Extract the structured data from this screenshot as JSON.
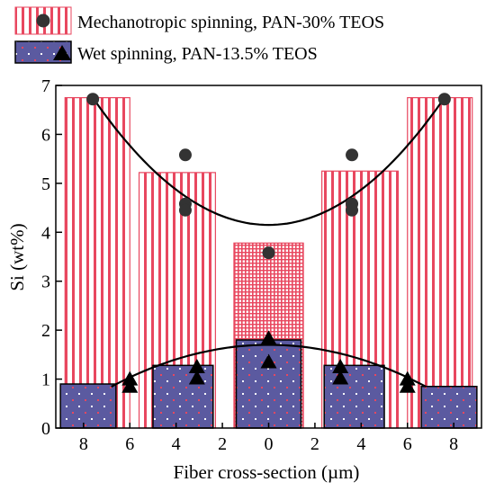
{
  "chart_data": {
    "type": "bar",
    "xlabel": "Fiber cross-section (µm)",
    "ylabel": "Si (wt%)",
    "ylim": [
      0,
      7
    ],
    "yticks": [
      "0",
      "1",
      "2",
      "3",
      "4",
      "5",
      "6",
      "7"
    ],
    "xtick_labels": [
      "8",
      "6",
      "4",
      "2",
      "0",
      "2",
      "4",
      "6",
      "8"
    ],
    "legend": {
      "position": "top",
      "entries": [
        "Mechanotropic spinning, PAN-30% TEOS",
        "Wet spinning, PAN-13.5% TEOS"
      ]
    },
    "series": [
      {
        "name": "Mechanotropic spinning, PAN-30% TEOS",
        "bar_values": [
          6.75,
          5.22,
          3.78,
          5.25,
          6.75
        ],
        "points": [
          {
            "x": -7.6,
            "y": 6.72
          },
          {
            "x": -3.6,
            "y": 5.58
          },
          {
            "x": -3.6,
            "y": 4.58
          },
          {
            "x": -3.6,
            "y": 4.45
          },
          {
            "x": 0.0,
            "y": 3.58
          },
          {
            "x": 3.6,
            "y": 5.58
          },
          {
            "x": 3.6,
            "y": 4.58
          },
          {
            "x": 3.6,
            "y": 4.45
          },
          {
            "x": 7.6,
            "y": 6.72
          }
        ],
        "fit_min": 4.15,
        "fit_edge": 6.75
      },
      {
        "name": "Wet spinning, PAN-13.5% TEOS",
        "bar_values": [
          0.9,
          1.28,
          1.8,
          1.28,
          0.85
        ],
        "points": [
          {
            "x": -6.0,
            "y": 1.0
          },
          {
            "x": -6.0,
            "y": 0.85
          },
          {
            "x": -3.1,
            "y": 1.25
          },
          {
            "x": -3.1,
            "y": 1.02
          },
          {
            "x": 0.0,
            "y": 1.83
          },
          {
            "x": 0.0,
            "y": 1.35
          },
          {
            "x": 3.1,
            "y": 1.25
          },
          {
            "x": 3.1,
            "y": 1.02
          },
          {
            "x": 6.0,
            "y": 1.0
          },
          {
            "x": 6.0,
            "y": 0.85
          }
        ],
        "fit_peak": 1.7,
        "fit_x_range": [
          -6.8,
          6.8
        ],
        "fit_k": 0.0185
      }
    ],
    "colors": {
      "stripe": "#e8475f",
      "wet_fill": "#5b5aa0",
      "marker": "#000000"
    }
  }
}
